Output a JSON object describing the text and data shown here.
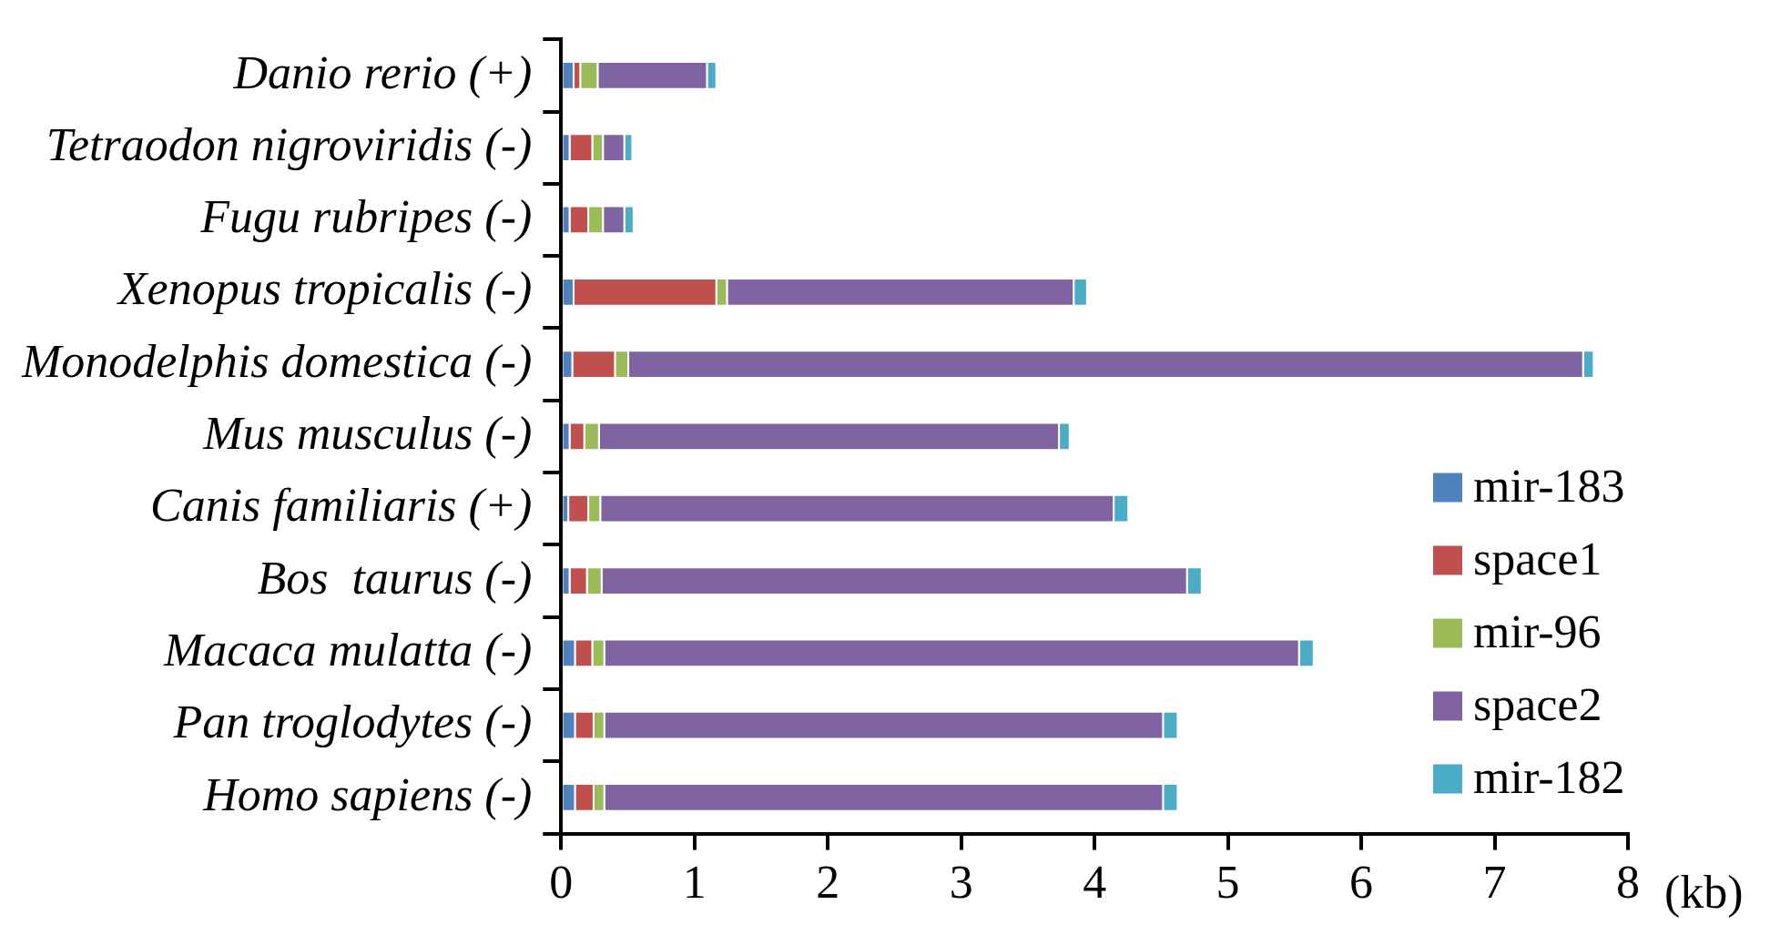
{
  "chart_data": {
    "type": "bar",
    "orientation": "horizontal",
    "stacked": true,
    "xlabel": "(kb)",
    "categories": [
      "Danio rerio (+)",
      "Tetraodon nigroviridis (-)",
      "Fugu rubripes (-)",
      "Xenopus tropicalis (-)",
      "Monodelphis domestica (-)",
      "Mus musculus (-)",
      "Canis familiaris (+)",
      "Bos  taurus (-)",
      "Macaca mulatta (-)",
      "Pan troglodytes (-)",
      "Homo sapiens (-)"
    ],
    "series": [
      {
        "name": "mir-183",
        "color": "#4f81bd",
        "values": [
          0.1,
          0.07,
          0.07,
          0.1,
          0.09,
          0.07,
          0.06,
          0.07,
          0.11,
          0.11,
          0.11
        ]
      },
      {
        "name": "space1",
        "color": "#c0504d",
        "values": [
          0.05,
          0.17,
          0.14,
          1.07,
          0.32,
          0.11,
          0.15,
          0.13,
          0.13,
          0.14,
          0.14
        ]
      },
      {
        "name": "mir-96",
        "color": "#9bbb59",
        "values": [
          0.13,
          0.08,
          0.11,
          0.08,
          0.1,
          0.11,
          0.09,
          0.11,
          0.09,
          0.08,
          0.08
        ]
      },
      {
        "name": "space2",
        "color": "#8064a2",
        "values": [
          0.82,
          0.16,
          0.16,
          2.6,
          7.16,
          3.45,
          3.85,
          4.39,
          5.21,
          4.19,
          4.19
        ]
      },
      {
        "name": "mir-182",
        "color": "#4bacc6",
        "values": [
          0.07,
          0.06,
          0.07,
          0.1,
          0.08,
          0.08,
          0.11,
          0.11,
          0.11,
          0.11,
          0.11
        ]
      }
    ],
    "xlim": [
      0,
      8
    ],
    "xticks": [
      0,
      1,
      2,
      3,
      4,
      5,
      6,
      7,
      8
    ],
    "grid": false,
    "legend": "bottom right"
  }
}
